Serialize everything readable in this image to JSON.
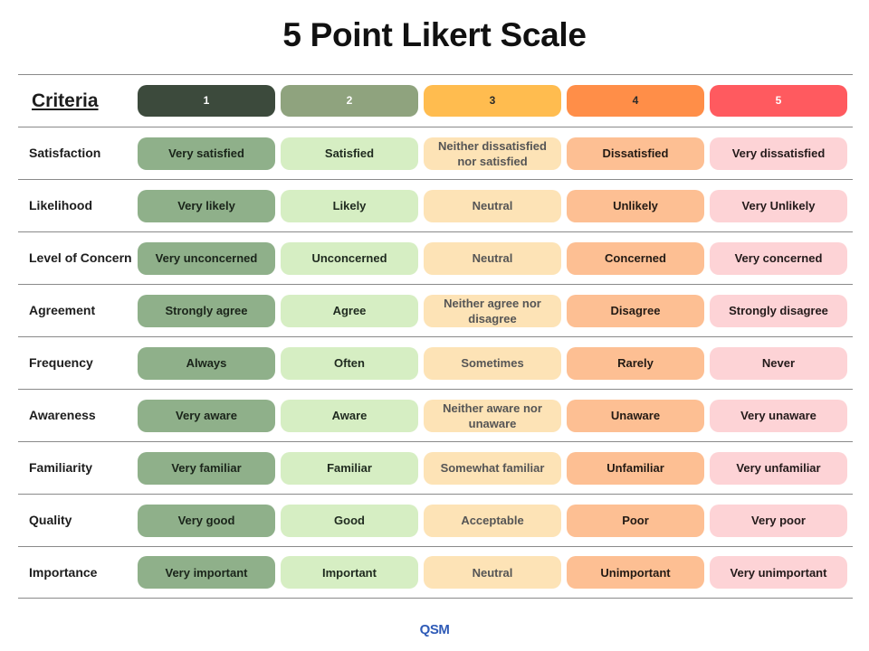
{
  "title": "5 Point Likert Scale",
  "header": {
    "criteria_label": "Criteria",
    "points": [
      "1",
      "2",
      "3",
      "4",
      "5"
    ]
  },
  "colors": {
    "point1": "#3c4a3c",
    "point2": "#8fa37e",
    "point3": "#ffbc4f",
    "point4": "#ff8e48",
    "point5": "#ff5a5f"
  },
  "rows": [
    {
      "criteria": "Satisfaction",
      "options": [
        "Very satisfied",
        "Satisfied",
        "Neither dissatisfied nor satisfied",
        "Dissatisfied",
        "Very dissatisfied"
      ]
    },
    {
      "criteria": "Likelihood",
      "options": [
        "Very likely",
        "Likely",
        "Neutral",
        "Unlikely",
        "Very Unlikely"
      ]
    },
    {
      "criteria": "Level of Concern",
      "options": [
        "Very unconcerned",
        "Unconcerned",
        "Neutral",
        "Concerned",
        "Very concerned"
      ]
    },
    {
      "criteria": "Agreement",
      "options": [
        "Strongly agree",
        "Agree",
        "Neither agree nor disagree",
        "Disagree",
        "Strongly disagree"
      ]
    },
    {
      "criteria": "Frequency",
      "options": [
        "Always",
        "Often",
        "Sometimes",
        "Rarely",
        "Never"
      ]
    },
    {
      "criteria": "Awareness",
      "options": [
        "Very aware",
        "Aware",
        "Neither aware nor unaware",
        "Unaware",
        "Very unaware"
      ]
    },
    {
      "criteria": "Familiarity",
      "options": [
        "Very familiar",
        "Familiar",
        "Somewhat familiar",
        "Unfamiliar",
        "Very unfamiliar"
      ]
    },
    {
      "criteria": "Quality",
      "options": [
        "Very good",
        "Good",
        "Acceptable",
        "Poor",
        "Very poor"
      ]
    },
    {
      "criteria": "Importance",
      "options": [
        "Very important",
        "Important",
        "Neutral",
        "Unimportant",
        "Very unimportant"
      ]
    }
  ],
  "footer": {
    "logo_text": "QSM"
  }
}
